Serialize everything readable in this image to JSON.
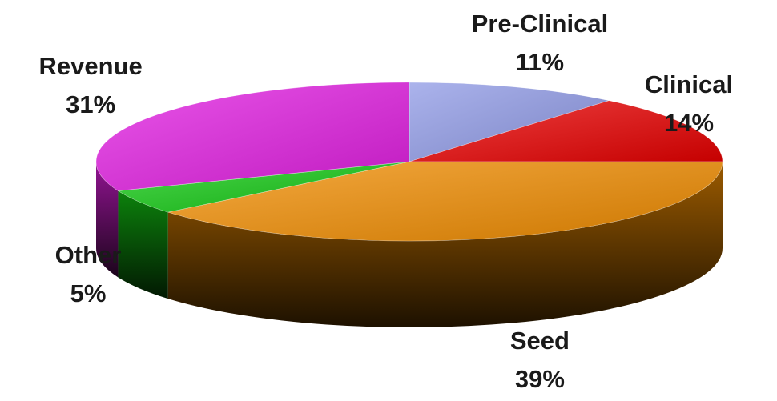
{
  "chart_data": {
    "type": "pie",
    "title": "",
    "three_d": true,
    "legend": "none",
    "slices": [
      {
        "name": "Pre-Clinical",
        "value": 11,
        "label": "11%",
        "color": "#8f9ae6"
      },
      {
        "name": "Clinical",
        "value": 14,
        "label": "14%",
        "color": "#e80000"
      },
      {
        "name": "Seed",
        "value": 39,
        "label": "39%",
        "color": "#f08c00"
      },
      {
        "name": "Other",
        "value": 5,
        "label": "5%",
        "color": "#12c812"
      },
      {
        "name": "Revenue",
        "value": 31,
        "label": "31%",
        "color": "#e21ee2"
      }
    ]
  }
}
